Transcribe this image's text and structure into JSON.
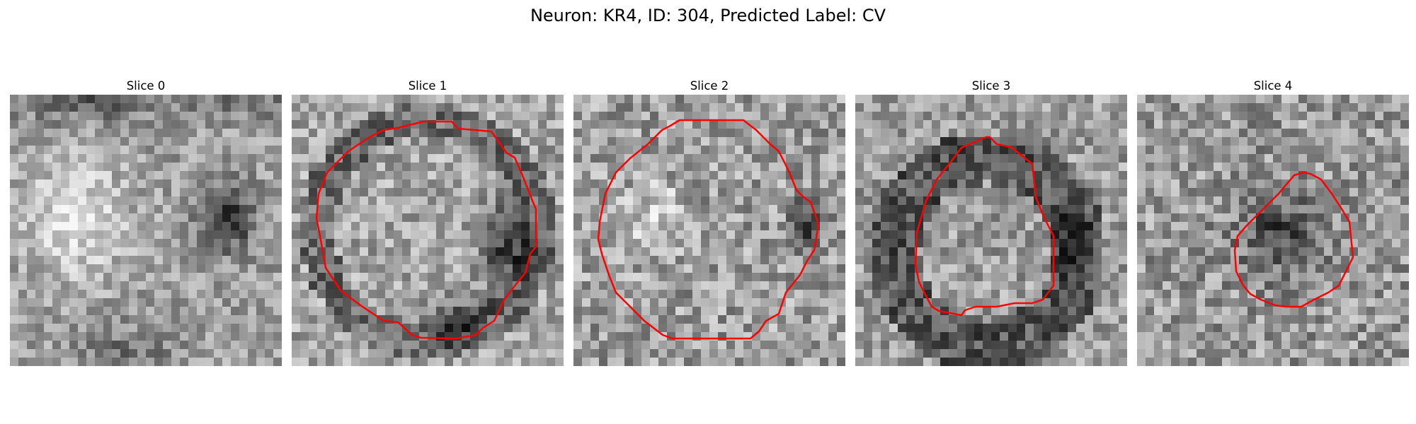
{
  "figure": {
    "title": "Neuron: KR4, ID: 304, Predicted Label: CV",
    "outline_color": "#ff0000",
    "panels": [
      {
        "title": "Slice 0",
        "has_outline": false,
        "dark_regions": "top edge and right side",
        "outline": []
      },
      {
        "title": "Slice 1",
        "has_outline": true,
        "outline": [
          [
            186,
            38
          ],
          [
            226,
            38
          ],
          [
            235,
            48
          ],
          [
            282,
            52
          ],
          [
            303,
            82
          ],
          [
            315,
            89
          ],
          [
            325,
            112
          ],
          [
            340,
            150
          ],
          [
            345,
            162
          ],
          [
            345,
            215
          ],
          [
            337,
            225
          ],
          [
            330,
            252
          ],
          [
            317,
            268
          ],
          [
            300,
            290
          ],
          [
            286,
            320
          ],
          [
            270,
            330
          ],
          [
            260,
            340
          ],
          [
            232,
            345
          ],
          [
            183,
            344
          ],
          [
            170,
            340
          ],
          [
            150,
            322
          ],
          [
            130,
            320
          ],
          [
            100,
            300
          ],
          [
            70,
            278
          ],
          [
            48,
            245
          ],
          [
            40,
            200
          ],
          [
            35,
            175
          ],
          [
            38,
            140
          ],
          [
            50,
            110
          ],
          [
            80,
            80
          ],
          [
            110,
            60
          ],
          [
            130,
            50
          ],
          [
            150,
            47
          ]
        ]
      },
      {
        "title": "Slice 2",
        "has_outline": true,
        "outline": [
          [
            150,
            36
          ],
          [
            240,
            36
          ],
          [
            258,
            50
          ],
          [
            278,
            70
          ],
          [
            290,
            80
          ],
          [
            305,
            110
          ],
          [
            315,
            135
          ],
          [
            325,
            145
          ],
          [
            335,
            152
          ],
          [
            345,
            180
          ],
          [
            345,
            190
          ],
          [
            340,
            220
          ],
          [
            330,
            235
          ],
          [
            320,
            255
          ],
          [
            300,
            280
          ],
          [
            290,
            310
          ],
          [
            272,
            320
          ],
          [
            262,
            335
          ],
          [
            250,
            345
          ],
          [
            140,
            345
          ],
          [
            126,
            340
          ],
          [
            100,
            320
          ],
          [
            80,
            300
          ],
          [
            60,
            280
          ],
          [
            50,
            255
          ],
          [
            40,
            225
          ],
          [
            35,
            205
          ],
          [
            37,
            180
          ],
          [
            45,
            140
          ],
          [
            60,
            110
          ],
          [
            80,
            90
          ],
          [
            105,
            70
          ],
          [
            125,
            50
          ],
          [
            135,
            45
          ]
        ]
      },
      {
        "title": "Slice 3",
        "has_outline": true,
        "outline": [
          [
            190,
            60
          ],
          [
            200,
            70
          ],
          [
            220,
            74
          ],
          [
            250,
            98
          ],
          [
            255,
            145
          ],
          [
            265,
            170
          ],
          [
            280,
            200
          ],
          [
            280,
            270
          ],
          [
            265,
            290
          ],
          [
            250,
            295
          ],
          [
            225,
            295
          ],
          [
            200,
            300
          ],
          [
            170,
            300
          ],
          [
            155,
            305
          ],
          [
            150,
            312
          ],
          [
            118,
            306
          ],
          [
            108,
            300
          ],
          [
            100,
            285
          ],
          [
            90,
            265
          ],
          [
            85,
            240
          ],
          [
            87,
            195
          ],
          [
            100,
            150
          ],
          [
            115,
            120
          ],
          [
            135,
            95
          ],
          [
            150,
            75
          ],
          [
            185,
            60
          ]
        ]
      },
      {
        "title": "Slice 4",
        "has_outline": true,
        "outline": [
          [
            235,
            110
          ],
          [
            245,
            112
          ],
          [
            260,
            120
          ],
          [
            275,
            140
          ],
          [
            288,
            160
          ],
          [
            300,
            180
          ],
          [
            305,
            230
          ],
          [
            295,
            250
          ],
          [
            285,
            270
          ],
          [
            270,
            280
          ],
          [
            250,
            290
          ],
          [
            232,
            300
          ],
          [
            210,
            300
          ],
          [
            195,
            298
          ],
          [
            175,
            290
          ],
          [
            160,
            282
          ],
          [
            150,
            270
          ],
          [
            140,
            250
          ],
          [
            138,
            220
          ],
          [
            142,
            200
          ],
          [
            155,
            185
          ],
          [
            170,
            170
          ],
          [
            185,
            155
          ],
          [
            200,
            140
          ],
          [
            210,
            128
          ],
          [
            222,
            114
          ]
        ]
      }
    ]
  }
}
